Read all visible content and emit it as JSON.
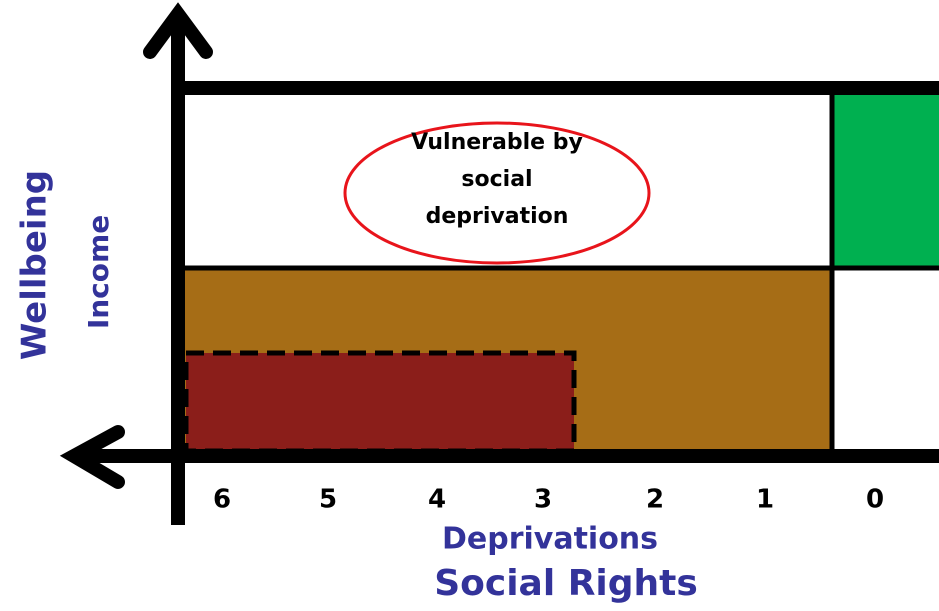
{
  "y_axis": {
    "outer_label": "Wellbeing",
    "inner_label": "Income"
  },
  "x_axis": {
    "ticks": [
      6,
      5,
      4,
      3,
      2,
      1,
      0
    ],
    "inner_label": "Deprivations",
    "outer_label": "Social Rights"
  },
  "callout": {
    "lines": [
      "Vulnerable by",
      "social",
      "deprivation"
    ]
  }
}
